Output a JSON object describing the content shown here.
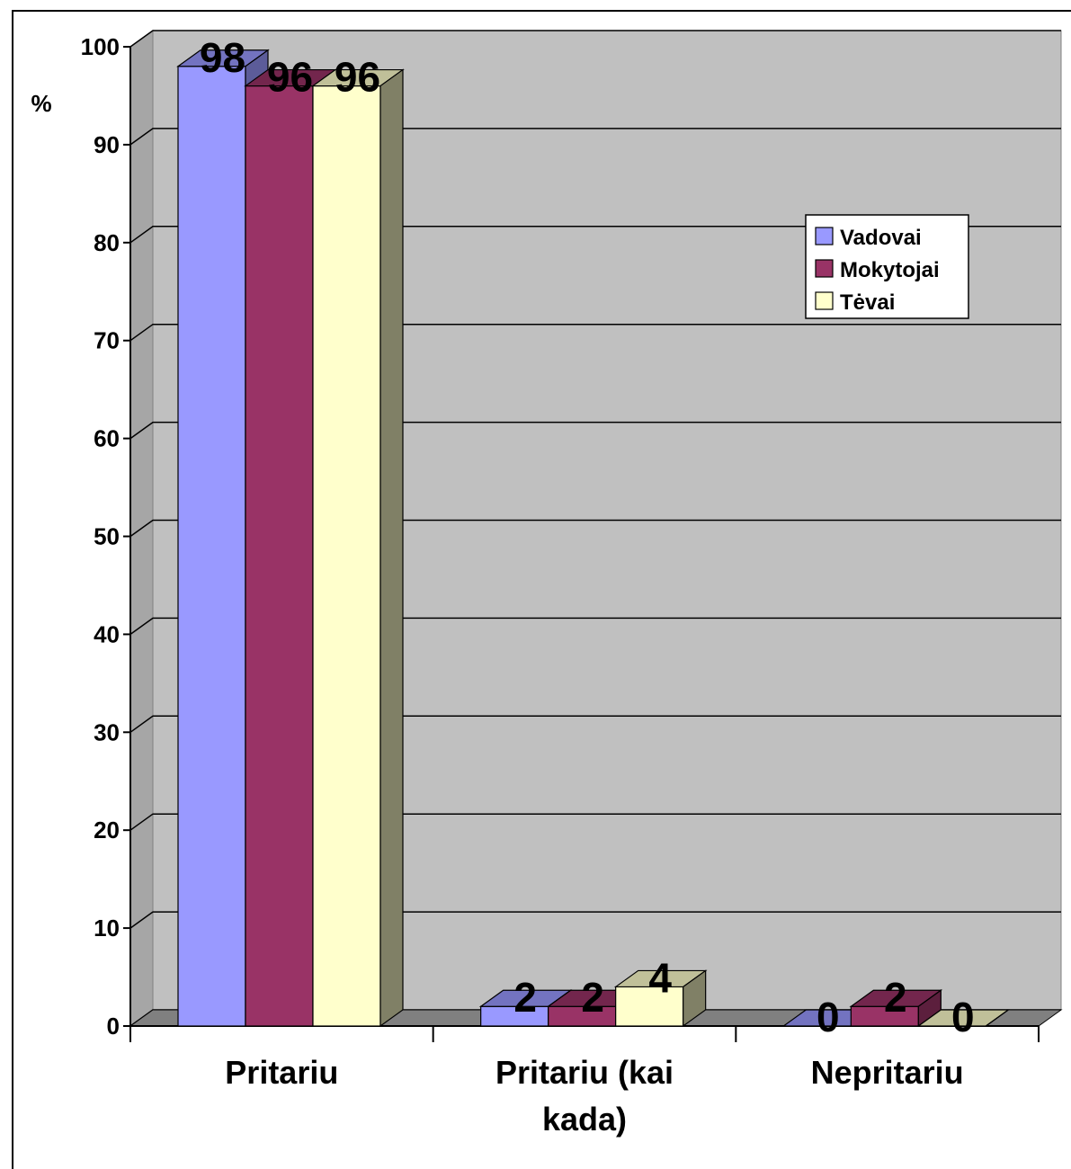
{
  "chart_data": {
    "type": "bar",
    "categories": [
      [
        "Pritariu"
      ],
      [
        "Pritariu (kai",
        "kada)"
      ],
      [
        "Nepritariu"
      ]
    ],
    "series": [
      {
        "name": "Vadovai",
        "values": [
          98,
          2,
          0
        ],
        "color": "#9999FF",
        "top_color": "#7373C0",
        "side_color": "#5C5C99"
      },
      {
        "name": "Mokytojai",
        "values": [
          96,
          2,
          2
        ],
        "color": "#993366",
        "top_color": "#73264D",
        "side_color": "#5C1F3D"
      },
      {
        "name": "Tėvai",
        "values": [
          96,
          4,
          0
        ],
        "color": "#FFFFCC",
        "top_color": "#C0C099",
        "side_color": "#808066"
      }
    ],
    "ylabel": "%",
    "ylim": [
      0,
      100
    ],
    "yticks": [
      0,
      10,
      20,
      30,
      40,
      50,
      60,
      70,
      80,
      90,
      100
    ],
    "grid": true,
    "legend_position": "right",
    "plot_background": "#C0C0C0"
  }
}
